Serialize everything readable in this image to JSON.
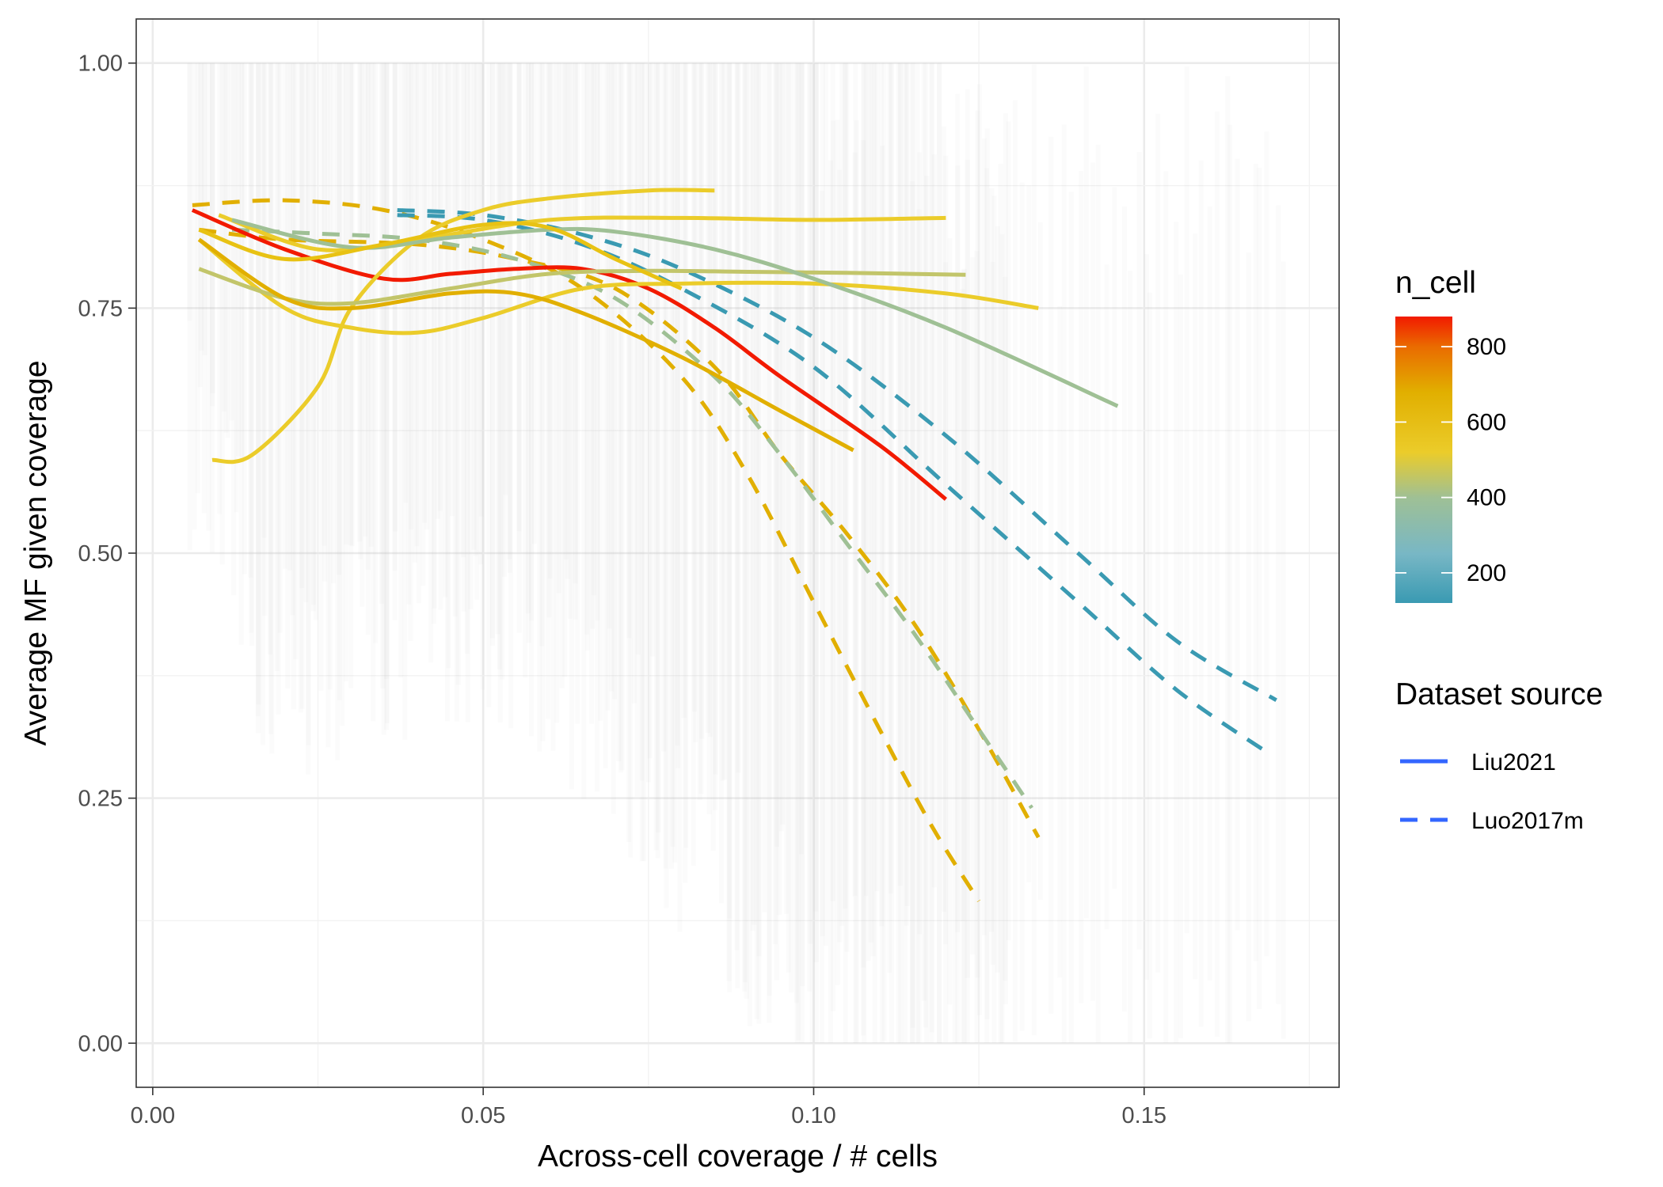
{
  "chart_data": {
    "type": "line",
    "xlabel": "Across-cell coverage / # cells",
    "ylabel": "Average MF given coverage",
    "xlim": [
      -0.0025,
      0.1795
    ],
    "ylim": [
      -0.045,
      1.045
    ],
    "x_ticks": [
      "0.00",
      "0.05",
      "0.10",
      "0.15"
    ],
    "x_tick_values": [
      0,
      0.05,
      0.1,
      0.15
    ],
    "y_ticks": [
      "0.00",
      "0.25",
      "0.50",
      "0.75",
      "1.00"
    ],
    "y_tick_values": [
      0,
      0.25,
      0.5,
      0.75,
      1.0
    ],
    "grid": true,
    "background_bands": "grey vertical range bars per coverage bin",
    "color_legend": {
      "title": "n_cell",
      "labels": [
        "800",
        "600",
        "400",
        "200"
      ],
      "values": [
        800,
        600,
        400,
        200
      ],
      "range": [
        120,
        880
      ],
      "gradient": [
        {
          "value": 120,
          "color": "#3a9ab2"
        },
        {
          "value": 250,
          "color": "#78b7c5"
        },
        {
          "value": 400,
          "color": "#9fc095"
        },
        {
          "value": 520,
          "color": "#ebcc2a"
        },
        {
          "value": 680,
          "color": "#e1af00"
        },
        {
          "value": 800,
          "color": "#ea6b00"
        },
        {
          "value": 880,
          "color": "#f21a00"
        }
      ]
    },
    "linetype_legend": {
      "title": "Dataset source",
      "entries": [
        {
          "label": "Liu2021",
          "dash": "solid"
        },
        {
          "label": "Luo2017m",
          "dash": "dashed"
        }
      ],
      "key_color": "#3366ff"
    },
    "series": [
      {
        "source": "Liu2021",
        "n_cell": 880,
        "color": "#f21a00",
        "x": [
          0.006,
          0.02,
          0.035,
          0.045,
          0.055,
          0.065,
          0.075,
          0.085,
          0.095,
          0.11,
          0.12
        ],
        "y": [
          0.85,
          0.81,
          0.78,
          0.785,
          0.79,
          0.79,
          0.77,
          0.73,
          0.68,
          0.61,
          0.555
        ]
      },
      {
        "source": "Liu2021",
        "n_cell": 560,
        "color": "#ebcc2a",
        "x": [
          0.009,
          0.015,
          0.025,
          0.03,
          0.04,
          0.05,
          0.06,
          0.075,
          0.085
        ],
        "y": [
          0.595,
          0.6,
          0.67,
          0.75,
          0.82,
          0.85,
          0.862,
          0.87,
          0.87
        ]
      },
      {
        "source": "Liu2021",
        "n_cell": 560,
        "color": "#ebcc2a",
        "x": [
          0.01,
          0.025,
          0.04,
          0.06,
          0.08,
          0.1,
          0.12
        ],
        "y": [
          0.845,
          0.81,
          0.82,
          0.84,
          0.842,
          0.84,
          0.842
        ]
      },
      {
        "source": "Liu2021",
        "n_cell": 560,
        "color": "#ebcc2a",
        "x": [
          0.007,
          0.02,
          0.03,
          0.04,
          0.05,
          0.065,
          0.08,
          0.1,
          0.12,
          0.134
        ],
        "y": [
          0.82,
          0.75,
          0.73,
          0.725,
          0.74,
          0.77,
          0.775,
          0.775,
          0.765,
          0.75
        ]
      },
      {
        "source": "Liu2021",
        "n_cell": 420,
        "color": "#c2c56a",
        "x": [
          0.007,
          0.02,
          0.03,
          0.045,
          0.06,
          0.075,
          0.09,
          0.105,
          0.123
        ],
        "y": [
          0.79,
          0.76,
          0.755,
          0.77,
          0.785,
          0.788,
          0.787,
          0.786,
          0.784
        ]
      },
      {
        "source": "Liu2021",
        "n_cell": 640,
        "color": "#e1af00",
        "x": [
          0.007,
          0.02,
          0.03,
          0.045,
          0.055,
          0.065,
          0.08,
          0.095,
          0.106
        ],
        "y": [
          0.82,
          0.76,
          0.75,
          0.765,
          0.765,
          0.745,
          0.7,
          0.645,
          0.605
        ]
      },
      {
        "source": "Liu2021",
        "n_cell": 400,
        "color": "#9fc095",
        "x": [
          0.012,
          0.03,
          0.045,
          0.06,
          0.07,
          0.085,
          0.1,
          0.12,
          0.146
        ],
        "y": [
          0.84,
          0.812,
          0.822,
          0.83,
          0.828,
          0.81,
          0.78,
          0.73,
          0.65
        ]
      },
      {
        "source": "Liu2021",
        "n_cell": 600,
        "color": "#e8c213",
        "x": [
          0.007,
          0.02,
          0.035,
          0.05,
          0.06,
          0.07,
          0.08
        ],
        "y": [
          0.83,
          0.8,
          0.815,
          0.835,
          0.832,
          0.8,
          0.77
        ]
      },
      {
        "source": "Luo2017m",
        "n_cell": 640,
        "color": "#e1af00",
        "x": [
          0.006,
          0.02,
          0.035,
          0.05,
          0.065,
          0.08,
          0.09,
          0.1,
          0.11,
          0.118,
          0.125
        ],
        "y": [
          0.855,
          0.86,
          0.85,
          0.82,
          0.77,
          0.68,
          0.58,
          0.45,
          0.32,
          0.22,
          0.145
        ]
      },
      {
        "source": "Luo2017m",
        "n_cell": 650,
        "color": "#e1af00",
        "x": [
          0.007,
          0.02,
          0.04,
          0.055,
          0.07,
          0.085,
          0.095,
          0.105,
          0.115,
          0.125,
          0.134
        ],
        "y": [
          0.83,
          0.82,
          0.815,
          0.8,
          0.77,
          0.69,
          0.6,
          0.52,
          0.43,
          0.32,
          0.21
        ]
      },
      {
        "source": "Luo2017m",
        "n_cell": 420,
        "color": "#9fc095",
        "x": [
          0.012,
          0.025,
          0.04,
          0.055,
          0.07,
          0.085,
          0.095,
          0.105,
          0.115,
          0.125,
          0.133
        ],
        "y": [
          0.83,
          0.826,
          0.82,
          0.8,
          0.76,
          0.68,
          0.6,
          0.51,
          0.42,
          0.32,
          0.24
        ]
      },
      {
        "source": "Luo2017m",
        "n_cell": 150,
        "color": "#3a9ab2",
        "x": [
          0.037,
          0.05,
          0.065,
          0.08,
          0.1,
          0.12,
          0.14,
          0.155,
          0.17
        ],
        "y": [
          0.85,
          0.845,
          0.825,
          0.79,
          0.72,
          0.62,
          0.5,
          0.41,
          0.35
        ]
      },
      {
        "source": "Luo2017m",
        "n_cell": 160,
        "color": "#3a9ab2",
        "x": [
          0.037,
          0.05,
          0.065,
          0.08,
          0.1,
          0.12,
          0.14,
          0.155,
          0.169
        ],
        "y": [
          0.845,
          0.84,
          0.815,
          0.77,
          0.69,
          0.57,
          0.45,
          0.36,
          0.295
        ]
      }
    ]
  }
}
